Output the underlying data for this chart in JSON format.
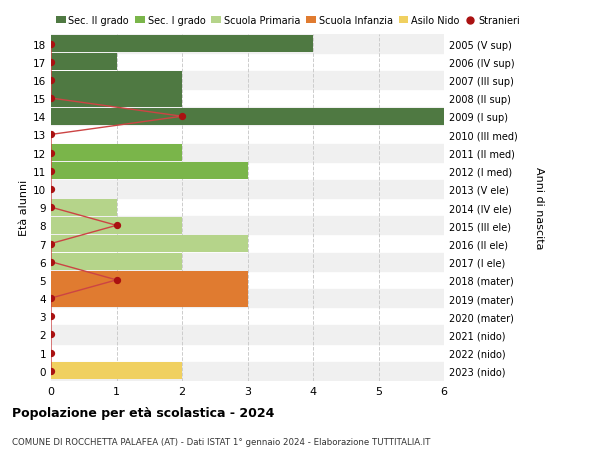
{
  "ages": [
    18,
    17,
    16,
    15,
    14,
    13,
    12,
    11,
    10,
    9,
    8,
    7,
    6,
    5,
    4,
    3,
    2,
    1,
    0
  ],
  "right_labels": [
    "2005 (V sup)",
    "2006 (IV sup)",
    "2007 (III sup)",
    "2008 (II sup)",
    "2009 (I sup)",
    "2010 (III med)",
    "2011 (II med)",
    "2012 (I med)",
    "2013 (V ele)",
    "2014 (IV ele)",
    "2015 (III ele)",
    "2016 (II ele)",
    "2017 (I ele)",
    "2018 (mater)",
    "2019 (mater)",
    "2020 (mater)",
    "2021 (nido)",
    "2022 (nido)",
    "2023 (nido)"
  ],
  "bar_values": [
    4,
    1,
    2,
    2,
    6,
    0,
    2,
    3,
    0,
    1,
    2,
    3,
    2,
    3,
    3,
    0,
    0,
    0,
    2
  ],
  "bar_colors": [
    "#4f7942",
    "#4f7942",
    "#4f7942",
    "#4f7942",
    "#4f7942",
    "#7ab54a",
    "#7ab54a",
    "#7ab54a",
    "#b5d48a",
    "#b5d48a",
    "#b5d48a",
    "#b5d48a",
    "#b5d48a",
    "#e07b30",
    "#e07b30",
    "#e07b30",
    "#f0d060",
    "#f0d060",
    "#f0d060"
  ],
  "stranieri_ages": [
    18,
    17,
    16,
    15,
    14,
    13,
    12,
    11,
    10,
    9,
    8,
    7,
    6,
    5,
    4,
    3,
    2,
    1,
    0
  ],
  "stranieri_x": [
    0,
    0,
    0,
    0,
    2,
    0,
    0,
    0,
    0,
    0,
    1,
    0,
    0,
    1,
    0,
    0,
    0,
    0,
    0
  ],
  "legend_labels": [
    "Sec. II grado",
    "Sec. I grado",
    "Scuola Primaria",
    "Scuola Infanzia",
    "Asilo Nido",
    "Stranieri"
  ],
  "legend_colors": [
    "#4f7942",
    "#7ab54a",
    "#b5d48a",
    "#e07b30",
    "#f0d060",
    "#aa1111"
  ],
  "title": "Popolazione per età scolastica - 2024",
  "subtitle": "COMUNE DI ROCCHETTA PALAFEA (AT) - Dati ISTAT 1° gennaio 2024 - Elaborazione TUTTITALIA.IT",
  "ylabel_left": "Età alunni",
  "ylabel_right": "Anni di nascita",
  "xlim": [
    0,
    6
  ],
  "ylim_min": -0.55,
  "ylim_max": 18.55,
  "bg_color": "#ffffff",
  "row_band_color": "#eeeeee",
  "grid_color": "#cccccc",
  "bar_height": 0.95,
  "stranieri_dot_color": "#aa1111",
  "stranieri_line_color": "#cc4444"
}
